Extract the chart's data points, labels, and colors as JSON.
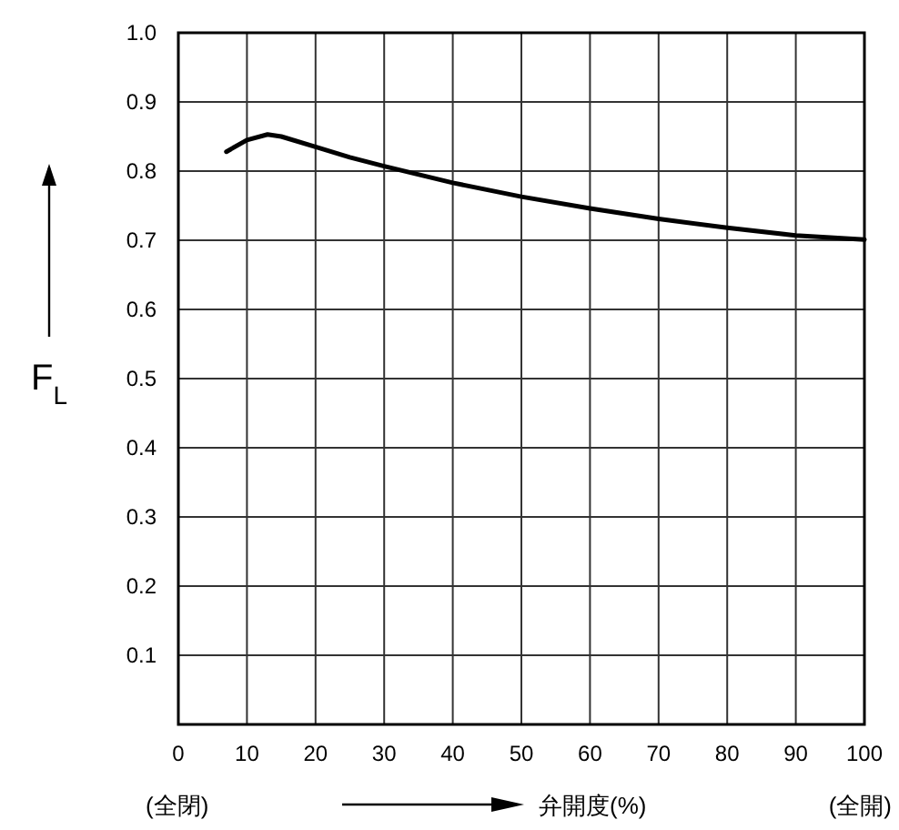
{
  "chart_data": {
    "type": "line",
    "xlabel": "弁開度(%)",
    "ylabel": "F$_{L}$",
    "annotations": [
      "(全閉)",
      "(全開)"
    ],
    "x": [
      7,
      10,
      13,
      15,
      20,
      25,
      30,
      40,
      50,
      60,
      70,
      80,
      90,
      100
    ],
    "series": [
      {
        "color": "#000000",
        "values": [
          0.828,
          0.845,
          0.853,
          0.85,
          0.835,
          0.82,
          0.807,
          0.783,
          0.763,
          0.746,
          0.731,
          0.718,
          0.707,
          0.701
        ]
      }
    ],
    "xlim": [
      0,
      100
    ],
    "ylim": [
      0,
      1
    ],
    "xticks": [
      0,
      10,
      20,
      30,
      40,
      50,
      60,
      70,
      80,
      90,
      100
    ],
    "yticks": [
      0.1,
      0.2,
      0.3,
      0.4,
      0.5,
      0.6,
      0.7,
      0.8,
      0.9,
      {
        "value": 1,
        "label": "1.0"
      }
    ],
    "grid": true,
    "marker": "none",
    "line_style": "solid"
  }
}
